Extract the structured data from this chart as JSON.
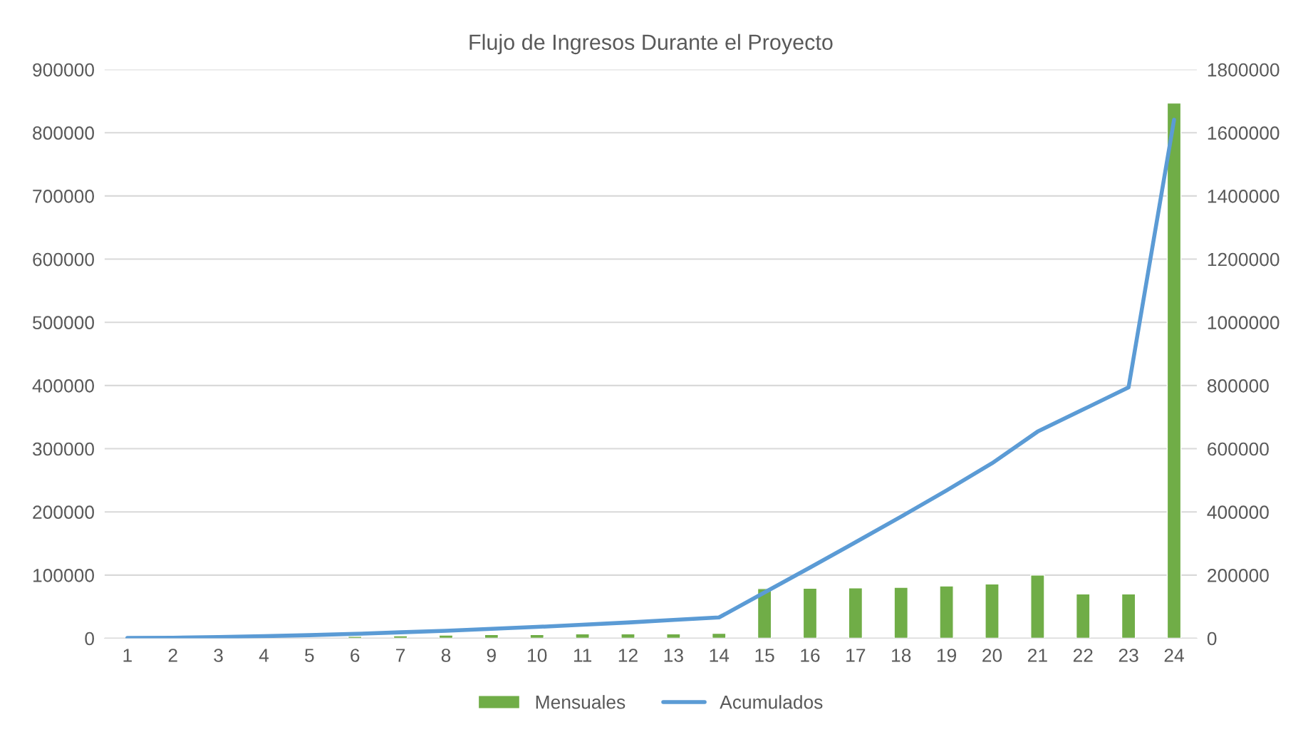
{
  "chart_data": {
    "type": "bar",
    "title": "Flujo de Ingresos Durante el Proyecto",
    "categories": [
      "1",
      "2",
      "3",
      "4",
      "5",
      "6",
      "7",
      "8",
      "9",
      "10",
      "11",
      "12",
      "13",
      "14",
      "15",
      "16",
      "17",
      "18",
      "19",
      "20",
      "21",
      "22",
      "23",
      "24"
    ],
    "series": [
      {
        "name": "Mensuales",
        "color": "#70ad47",
        "values": [
          null,
          null,
          null,
          null,
          null,
          3000,
          4000,
          5000,
          6000,
          6000,
          7000,
          7000,
          7000,
          8000,
          78600,
          79200,
          79700,
          80700,
          82800,
          85900,
          100000,
          70300,
          70300,
          847000
        ]
      },
      {
        "name": "Acumulados",
        "type": "line",
        "axis": "y2",
        "color": "#5b9bd5",
        "values": [
          1000,
          2000,
          4000,
          7000,
          10000,
          14000,
          19000,
          24000,
          30000,
          36000,
          43000,
          50000,
          58000,
          66000,
          145000,
          224000,
          304000,
          385000,
          468000,
          554000,
          654000,
          724000,
          794000,
          1641000
        ]
      }
    ],
    "ylim": [
      0,
      900000
    ],
    "yticks": [
      0,
      100000,
      200000,
      300000,
      400000,
      500000,
      600000,
      700000,
      800000,
      900000
    ],
    "y2lim": [
      0,
      1800000
    ],
    "y2ticks": [
      0,
      200000,
      400000,
      600000,
      800000,
      1000000,
      1200000,
      1400000,
      1600000,
      1800000
    ],
    "grid": "y",
    "legend": "bottom"
  }
}
